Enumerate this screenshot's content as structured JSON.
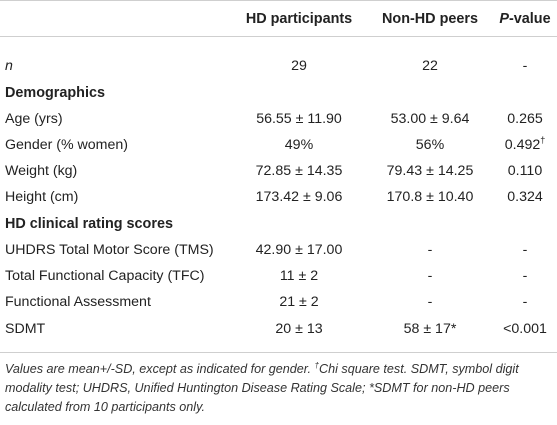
{
  "header": {
    "col0": "",
    "col1": "HD participants",
    "col2": "Non-HD peers",
    "col3_italic": "P",
    "col3_rest": "-value"
  },
  "rows": [
    {
      "label": "n",
      "hd": "29",
      "peers": "22",
      "p": "-"
    },
    {
      "section": "Demographics"
    },
    {
      "label": "Age (yrs)",
      "hd": "56.55 ± 11.90",
      "peers": "53.00 ± 9.64",
      "p": "0.265"
    },
    {
      "label": "Gender (% women)",
      "hd": "49%",
      "peers": "56%",
      "p": "0.492",
      "p_sup": "†"
    },
    {
      "label": "Weight (kg)",
      "hd": "72.85 ± 14.35",
      "peers": "79.43 ± 14.25",
      "p": "0.110"
    },
    {
      "label": "Height (cm)",
      "hd": "173.42 ± 9.06",
      "peers": "170.8 ± 10.40",
      "p": "0.324"
    },
    {
      "section": "HD clinical rating scores"
    },
    {
      "label": "UHDRS Total Motor Score (TMS)",
      "hd": "42.90 ± 17.00",
      "peers": "-",
      "p": "-"
    },
    {
      "label": "Total Functional Capacity (TFC)",
      "hd": "11 ± 2",
      "peers": "-",
      "p": "-"
    },
    {
      "label": "Functional Assessment",
      "hd": "21 ± 2",
      "peers": "-",
      "p": "-"
    },
    {
      "label": "SDMT",
      "hd": "20 ± 13",
      "peers": "58 ± 17*",
      "p": "<0.001"
    }
  ],
  "footnote": {
    "part1": "Values are mean+/-SD, except as indicated for gender. ",
    "sup": "†",
    "part2": "Chi square test. SDMT, symbol digit modality test; UHDRS, Unified Huntington Disease Rating Scale; *SDMT for non-HD peers calculated from 10 participants only."
  }
}
